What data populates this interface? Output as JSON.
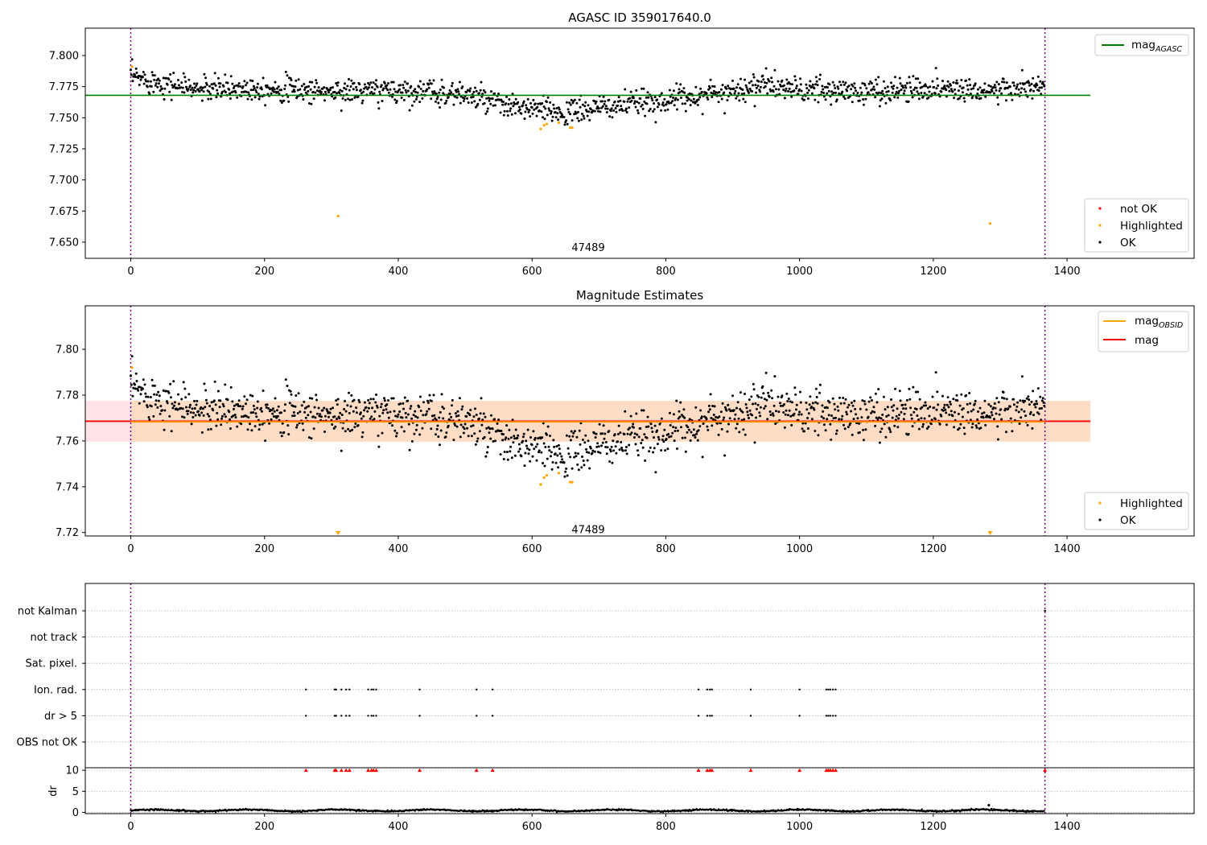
{
  "figure": {
    "colors": {
      "ok": "#000000",
      "highlighted": "#ffa500",
      "not_ok": "#ff0000",
      "agasc_line": "#008000",
      "mag_line": "#ff0000",
      "obsid_line": "#ffa500",
      "band_outer": "#ffc0cb",
      "band_inner": "#ffdab9",
      "obs_boundary": "#800080"
    }
  },
  "chart_data": [
    {
      "id": "panel1",
      "type": "scatter",
      "title": "AGASC ID 359017640.0",
      "xlabel": "",
      "ylabel": "",
      "xlim": [
        -68,
        1590
      ],
      "ylim": [
        7.637,
        7.822
      ],
      "xticks": [
        0,
        200,
        400,
        600,
        800,
        1000,
        1200,
        1400
      ],
      "yticks": [
        7.65,
        7.675,
        7.7,
        7.725,
        7.75,
        7.775,
        7.8
      ],
      "ytick_labels": [
        "7.650",
        "7.675",
        "7.700",
        "7.725",
        "7.750",
        "7.775",
        "7.800"
      ],
      "grid": false,
      "observation_boundaries": [
        0,
        1367
      ],
      "observation_labels": [
        {
          "x": 684,
          "y": 7.646,
          "text": "47489"
        }
      ],
      "hlines": [
        {
          "name": "mag_AGASC",
          "y": 7.768,
          "x_range": [
            0,
            1435
          ]
        }
      ],
      "legends": [
        {
          "placement": "top-right",
          "entries": [
            {
              "label": "mag",
              "subscript": "AGASC",
              "kind": "line",
              "color": "#008000"
            }
          ]
        },
        {
          "placement": "lower-right",
          "entries": [
            {
              "label": "not OK",
              "kind": "point",
              "color": "#ff0000"
            },
            {
              "label": "Highlighted",
              "kind": "point",
              "color": "#ffa500"
            },
            {
              "label": "OK",
              "kind": "point",
              "color": "#000000"
            }
          ]
        }
      ],
      "series": [
        {
          "name": "OK",
          "style": "point",
          "trend": {
            "x": [
              0,
              100,
              200,
              300,
              400,
              500,
              560,
              600,
              650,
              700,
              800,
              900,
              950,
              1000,
              1100,
              1200,
              1300,
              1367
            ],
            "y": [
              7.783,
              7.773,
              7.774,
              7.771,
              7.772,
              7.769,
              7.759,
              7.757,
              7.754,
              7.758,
              7.764,
              7.772,
              7.777,
              7.772,
              7.771,
              7.774,
              7.772,
              7.775
            ]
          },
          "scatter_sd": 0.005,
          "n": 1367
        },
        {
          "name": "Highlighted",
          "style": "point",
          "x": [
            2,
            310,
            613,
            618,
            622,
            640,
            657,
            660,
            1285
          ],
          "y": [
            7.791,
            7.671,
            7.741,
            7.744,
            7.745,
            7.746,
            7.742,
            7.742,
            7.665
          ]
        }
      ]
    },
    {
      "id": "panel2",
      "type": "scatter",
      "title": "Magnitude Estimates",
      "xlabel": "",
      "ylabel": "",
      "xlim": [
        -68,
        1590
      ],
      "ylim": [
        7.7185,
        7.819
      ],
      "xticks": [
        0,
        200,
        400,
        600,
        800,
        1000,
        1200,
        1400
      ],
      "yticks": [
        7.72,
        7.74,
        7.76,
        7.78,
        7.8
      ],
      "ytick_labels": [
        "7.72",
        "7.74",
        "7.76",
        "7.78",
        "7.80"
      ],
      "grid": false,
      "observation_boundaries": [
        0,
        1367
      ],
      "observation_labels": [
        {
          "x": 684,
          "y": 7.7215,
          "text": "47489"
        }
      ],
      "hlines": [
        {
          "name": "mag_OBSID",
          "y": 7.7683,
          "x_range": [
            0,
            1367
          ]
        },
        {
          "name": "mag",
          "y": 7.7686,
          "x_range": [
            -68,
            1435
          ]
        }
      ],
      "bands": [
        {
          "name": "mag",
          "y_range": [
            7.7597,
            7.7775
          ],
          "x_range": [
            -68,
            1435
          ]
        },
        {
          "name": "mag_OBSID",
          "y_range": [
            7.7597,
            7.7775
          ],
          "x_range": [
            0,
            1435
          ]
        }
      ],
      "legends": [
        {
          "placement": "top-right",
          "entries": [
            {
              "label": "mag",
              "subscript": "OBSID",
              "kind": "line",
              "color": "#ffa500"
            },
            {
              "label": "mag",
              "kind": "line",
              "color": "#ff0000"
            }
          ]
        },
        {
          "placement": "lower-right",
          "entries": [
            {
              "label": "Highlighted",
              "kind": "point",
              "color": "#ffa500"
            },
            {
              "label": "OK",
              "kind": "point",
              "color": "#000000"
            }
          ]
        }
      ],
      "series": [
        {
          "name": "OK",
          "style": "point",
          "trend": {
            "x": [
              0,
              100,
              200,
              300,
              400,
              500,
              560,
              600,
              650,
              700,
              800,
              900,
              950,
              1000,
              1100,
              1200,
              1300,
              1367
            ],
            "y": [
              7.783,
              7.773,
              7.774,
              7.771,
              7.772,
              7.769,
              7.759,
              7.757,
              7.754,
              7.758,
              7.764,
              7.772,
              7.777,
              7.772,
              7.771,
              7.774,
              7.772,
              7.775
            ]
          },
          "scatter_sd": 0.005,
          "n": 1367
        },
        {
          "name": "Highlighted",
          "style": "point",
          "x": [
            2,
            613,
            618,
            622,
            640,
            657,
            660
          ],
          "y": [
            7.792,
            7.741,
            7.744,
            7.745,
            7.746,
            7.742,
            7.742
          ]
        },
        {
          "name": "Highlighted (below axis)",
          "style": "triangle-down",
          "x": [
            310,
            1285
          ],
          "y": [
            7.72,
            7.72
          ]
        }
      ]
    },
    {
      "id": "panel3",
      "type": "scatter",
      "title": "",
      "xlabel": "",
      "ylabel": "",
      "xlim": [
        -68,
        1590
      ],
      "categories": [
        "not Kalman",
        "not track",
        "Sat. pixel.",
        "Ion. rad.",
        "dr > 5",
        "OBS not OK"
      ],
      "grid": true,
      "observation_boundaries": [
        0,
        1367
      ],
      "series": [
        {
          "name": "Ion. rad.",
          "x": [
            262,
            305,
            307,
            315,
            322,
            327,
            355,
            360,
            363,
            367,
            432,
            517,
            541,
            849,
            862,
            866,
            869,
            927,
            1000,
            1040,
            1043,
            1046,
            1050,
            1054
          ],
          "y": "Ion. rad."
        },
        {
          "name": "dr > 5",
          "x": [
            262,
            305,
            307,
            315,
            322,
            327,
            355,
            360,
            363,
            367,
            432,
            517,
            541,
            849,
            862,
            866,
            869,
            927,
            1000,
            1040,
            1043,
            1046,
            1050,
            1054
          ],
          "y": "dr > 5"
        },
        {
          "name": "not Kalman",
          "x": [
            1367
          ],
          "y": "not Kalman"
        }
      ]
    },
    {
      "id": "panel4",
      "type": "scatter",
      "title": "",
      "xlabel": "",
      "ylabel": "dr",
      "xlim": [
        -68,
        1590
      ],
      "ylim": [
        -0.3,
        10.6
      ],
      "xticks": [
        0,
        200,
        400,
        600,
        800,
        1000,
        1200,
        1400
      ],
      "yticks": [
        0,
        5,
        10
      ],
      "ytick_labels": [
        "0",
        "5",
        "10"
      ],
      "grid": true,
      "observation_boundaries": [
        0,
        1367
      ],
      "series": [
        {
          "name": "dr",
          "style": "point",
          "baseline": 0.45,
          "scatter_sd": 0.15,
          "n": 1367
        },
        {
          "name": "dr outlier",
          "style": "point",
          "x": [
            1283
          ],
          "y": [
            1.7
          ]
        },
        {
          "name": "dr > 10 (clipped)",
          "style": "triangle-up",
          "color": "#ff0000",
          "x": [
            262,
            305,
            307,
            315,
            322,
            327,
            355,
            360,
            363,
            367,
            432,
            517,
            541,
            849,
            862,
            866,
            869,
            927,
            1000,
            1040,
            1043,
            1046,
            1050,
            1054,
            1367
          ],
          "y": [
            10,
            10,
            10,
            10,
            10,
            10,
            10,
            10,
            10,
            10,
            10,
            10,
            10,
            10,
            10,
            10,
            10,
            10,
            10,
            10,
            10,
            10,
            10,
            10,
            10
          ]
        }
      ]
    }
  ]
}
